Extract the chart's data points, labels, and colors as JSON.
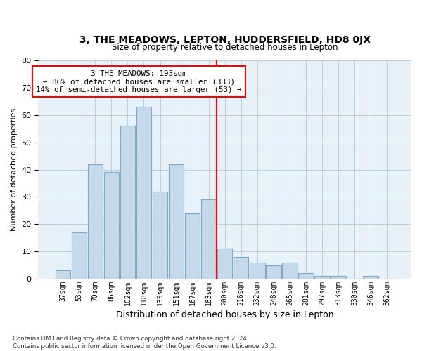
{
  "title1": "3, THE MEADOWS, LEPTON, HUDDERSFIELD, HD8 0JX",
  "title2": "Size of property relative to detached houses in Lepton",
  "xlabel": "Distribution of detached houses by size in Lepton",
  "ylabel": "Number of detached properties",
  "footnote": "Contains HM Land Registry data © Crown copyright and database right 2024.\nContains public sector information licensed under the Open Government Licence v3.0.",
  "bar_labels": [
    "37sqm",
    "53sqm",
    "70sqm",
    "86sqm",
    "102sqm",
    "118sqm",
    "135sqm",
    "151sqm",
    "167sqm",
    "183sqm",
    "200sqm",
    "216sqm",
    "232sqm",
    "248sqm",
    "265sqm",
    "281sqm",
    "297sqm",
    "313sqm",
    "330sqm",
    "346sqm",
    "362sqm"
  ],
  "bar_values": [
    3,
    17,
    42,
    39,
    56,
    63,
    32,
    42,
    24,
    29,
    11,
    8,
    6,
    5,
    6,
    2,
    1,
    1,
    0,
    1,
    0
  ],
  "bar_color": "#c6d9ea",
  "bar_edge_color": "#7aaac8",
  "vline_x": 9.5,
  "vline_color": "red",
  "annotation_text": "3 THE MEADOWS: 193sqm\n← 86% of detached houses are smaller (333)\n14% of semi-detached houses are larger (53) →",
  "ylim": [
    0,
    80
  ],
  "yticks": [
    0,
    10,
    20,
    30,
    40,
    50,
    60,
    70,
    80
  ],
  "grid_color": "#b8cfe0",
  "background_color": "#e8f0f8"
}
